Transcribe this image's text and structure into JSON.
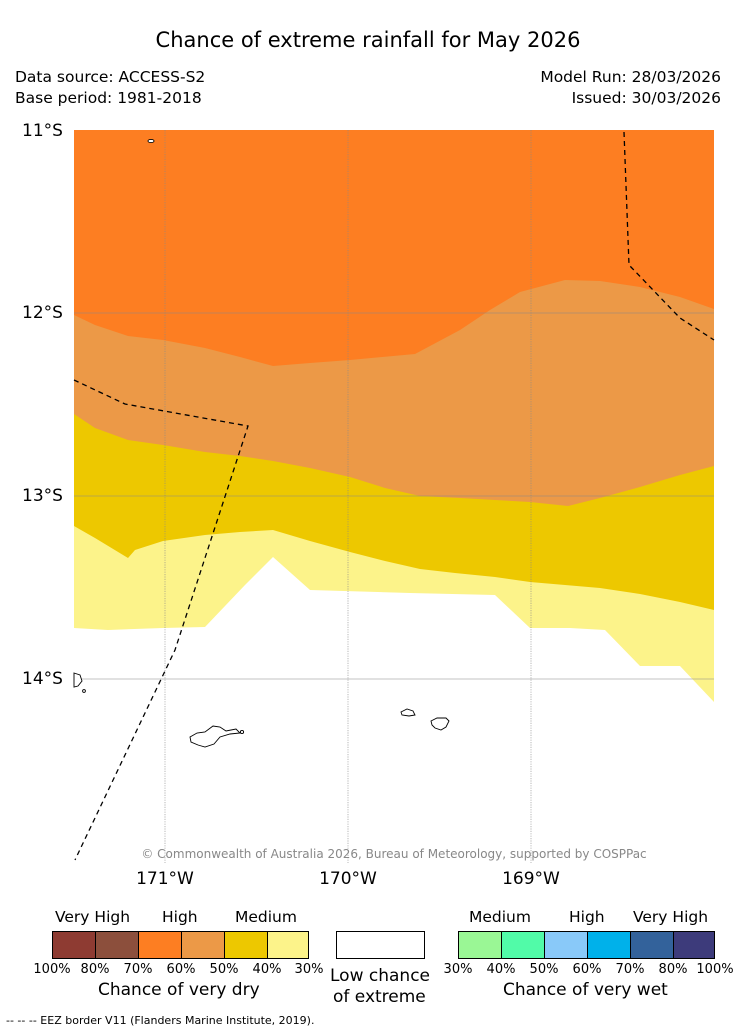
{
  "header": {
    "title": "Chance of extreme rainfall for May 2026",
    "data_source": "Data source: ACCESS-S2",
    "base_period": "Base period: 1981-2018",
    "model_run": "Model Run: 28/03/2026",
    "issued": "Issued: 30/03/2026"
  },
  "map": {
    "latitude_labels": [
      "11°S",
      "12°S",
      "13°S",
      "14°S"
    ],
    "longitude_labels": [
      "171°W",
      "170°W",
      "169°W"
    ],
    "copyright": "© Commonwealth of Australia 2026, Bureau of Meteorology, supported by COSPPac",
    "zones": [
      {
        "name": "dry 60-70%",
        "color": "#fd7e22"
      },
      {
        "name": "dry 50-60%",
        "color": "#ec9947"
      },
      {
        "name": "dry 40-50%",
        "color": "#edc800"
      },
      {
        "name": "dry 30-40%",
        "color": "#fcf38a"
      },
      {
        "name": "low chance of extreme",
        "color": "#ffffff"
      }
    ]
  },
  "legend": {
    "dry": {
      "levels": [
        "Very High",
        "High",
        "Medium"
      ],
      "colors": [
        "#8e3b32",
        "#8c4f3c",
        "#fd7e22",
        "#ec9947",
        "#edc800",
        "#fcf38a"
      ],
      "ticks": [
        "100%",
        "80%",
        "70%",
        "60%",
        "50%",
        "40%",
        "30%"
      ],
      "caption": "Chance of very dry"
    },
    "neutral": {
      "color": "#ffffff",
      "caption_line1": "Low chance",
      "caption_line2": "of extreme"
    },
    "wet": {
      "levels": [
        "Medium",
        "High",
        "Very High"
      ],
      "colors": [
        "#9af795",
        "#51fba8",
        "#89c9f9",
        "#00b1ea",
        "#33629b",
        "#3d3b7b"
      ],
      "ticks": [
        "30%",
        "40%",
        "50%",
        "60%",
        "70%",
        "80%",
        "100%"
      ],
      "caption": "Chance of very wet"
    }
  },
  "footnote": "--  --  -- EEZ border V11 (Flanders Marine Institute, 2019)."
}
